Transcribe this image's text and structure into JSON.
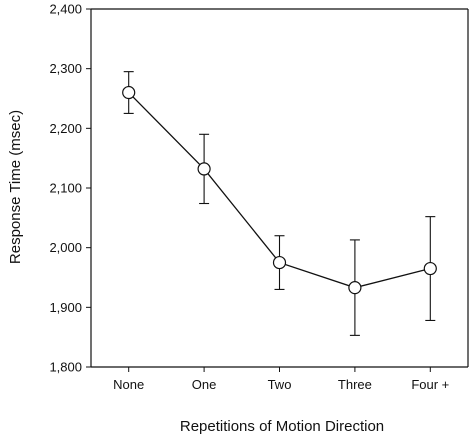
{
  "chart_data": {
    "type": "line",
    "xlabel": "Repetitions of Motion Direction",
    "ylabel": "Response Time (msec)",
    "ylim": [
      1800,
      2400
    ],
    "yticks": [
      1800,
      1900,
      2000,
      2100,
      2200,
      2300,
      2400
    ],
    "ytick_labels": [
      "1,800",
      "1,900",
      "2,000",
      "2,100",
      "2,200",
      "2,300",
      "2,400"
    ],
    "categories": [
      "None",
      "One",
      "Two",
      "Three",
      "Four +"
    ],
    "values": [
      2260,
      2132,
      1975,
      1933,
      1965
    ],
    "error": [
      35,
      58,
      45,
      80,
      87
    ],
    "grid": false,
    "marker": "open-circle",
    "colors": {
      "line": "#111111",
      "marker_fill": "#ffffff",
      "axis": "#111111"
    }
  }
}
